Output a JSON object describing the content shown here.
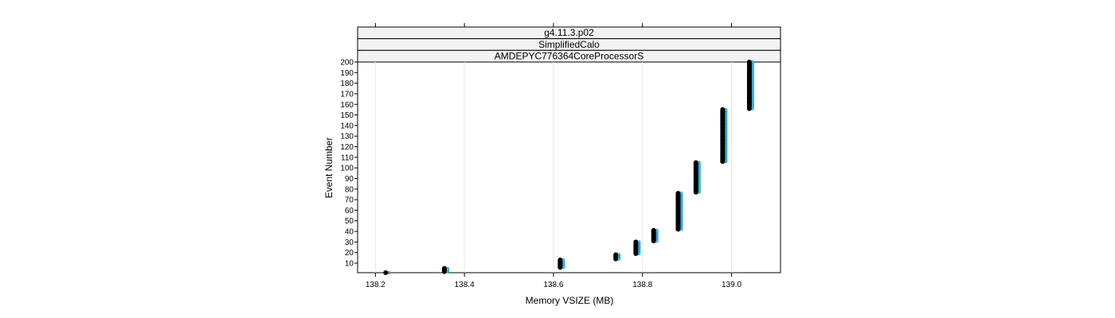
{
  "chart_data": {
    "type": "scatter",
    "strips": [
      "g4.11.3.p02",
      "SimplifiedCalo",
      "AMDEPYC776364CoreProcessorS"
    ],
    "xlabel": "Memory VSIZE (MB)",
    "ylabel": "Event Number",
    "xlim": [
      138.16,
      139.11
    ],
    "ylim": [
      1,
      200
    ],
    "x_ticks": [
      138.2,
      138.4,
      138.6,
      138.8,
      139.0
    ],
    "x_tick_labels": [
      "138.2",
      "138.4",
      "138.6",
      "138.8",
      "139.0"
    ],
    "y_ticks": [
      10,
      20,
      30,
      40,
      50,
      60,
      70,
      80,
      90,
      100,
      110,
      120,
      130,
      140,
      150,
      160,
      170,
      180,
      190,
      200
    ],
    "grid": "vertical",
    "series": [
      {
        "color": "#000000",
        "points": [
          {
            "x": 138.223,
            "y_from": 1,
            "y_to": 1
          },
          {
            "x": 138.355,
            "y_from": 2,
            "y_to": 5
          },
          {
            "x": 138.615,
            "y_from": 6,
            "y_to": 13
          },
          {
            "x": 138.74,
            "y_from": 14,
            "y_to": 18
          },
          {
            "x": 138.785,
            "y_from": 19,
            "y_to": 30
          },
          {
            "x": 138.825,
            "y_from": 31,
            "y_to": 41
          },
          {
            "x": 138.88,
            "y_from": 42,
            "y_to": 76
          },
          {
            "x": 138.92,
            "y_from": 77,
            "y_to": 105
          },
          {
            "x": 138.98,
            "y_from": 106,
            "y_to": 155
          },
          {
            "x": 139.04,
            "y_from": 156,
            "y_to": 200
          }
        ]
      },
      {
        "color": "#29a8e0",
        "points": [
          {
            "x": 138.23,
            "y_from": 1,
            "y_to": 1
          },
          {
            "x": 138.362,
            "y_from": 2,
            "y_to": 5
          },
          {
            "x": 138.622,
            "y_from": 6,
            "y_to": 13
          },
          {
            "x": 138.747,
            "y_from": 14,
            "y_to": 18
          },
          {
            "x": 138.792,
            "y_from": 19,
            "y_to": 30
          },
          {
            "x": 138.832,
            "y_from": 31,
            "y_to": 41
          },
          {
            "x": 138.887,
            "y_from": 42,
            "y_to": 76
          },
          {
            "x": 138.927,
            "y_from": 77,
            "y_to": 105
          },
          {
            "x": 138.987,
            "y_from": 106,
            "y_to": 155
          },
          {
            "x": 139.047,
            "y_from": 156,
            "y_to": 200
          }
        ]
      }
    ]
  }
}
